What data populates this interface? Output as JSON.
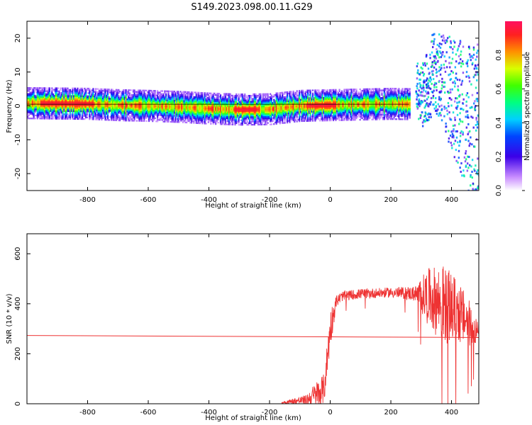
{
  "title": "S149.2023.098.00.11.G29",
  "chart_data": [
    {
      "type": "heatmap",
      "xlabel": "Height of straight line (km)",
      "ylabel": "Frequency (Hz)",
      "xlim": [
        -1000,
        490
      ],
      "ylim": [
        -25,
        25
      ],
      "x_ticks": [
        -800,
        -600,
        -400,
        -200,
        0,
        200,
        400
      ],
      "y_ticks": [
        -20,
        -10,
        0,
        10,
        20
      ],
      "colorbar": {
        "label": "Normalized spectral amplitude",
        "ticks": [
          0.0,
          0.2,
          0.4,
          0.6,
          0.8
        ],
        "range": [
          0,
          1
        ]
      },
      "reference_line_hz": 0,
      "ridge": {
        "x": [
          -1000,
          -800,
          -700,
          -600,
          -500,
          -400,
          -300,
          -200,
          -100,
          0,
          100,
          200,
          260
        ],
        "freq": [
          0.8,
          0.6,
          0.2,
          0.0,
          -0.3,
          -0.8,
          -1.1,
          -1.0,
          0.0,
          0.2,
          0.4,
          0.6,
          0.5
        ]
      },
      "grid": false
    },
    {
      "type": "line",
      "xlabel": "Height of straight line (km)",
      "ylabel": "SNR (10 * v/v)",
      "xlim": [
        -1000,
        490
      ],
      "ylim": [
        0,
        680
      ],
      "x_ticks": [
        -800,
        -600,
        -400,
        -200,
        0,
        200,
        400
      ],
      "y_ticks": [
        0,
        200,
        400,
        600
      ],
      "series_color": "#ee3333",
      "flat_segment": {
        "x": [
          -1000,
          490
        ],
        "y": [
          273,
          265
        ]
      },
      "noisy_profile": {
        "x": [
          -160,
          -80,
          -40,
          -20,
          0,
          20,
          40,
          100,
          200,
          280,
          320,
          370,
          420,
          460,
          490
        ],
        "y": [
          5,
          15,
          40,
          60,
          300,
          410,
          430,
          440,
          445,
          440,
          430,
          400,
          370,
          320,
          280
        ],
        "spread": [
          5,
          20,
          60,
          60,
          80,
          25,
          20,
          20,
          20,
          30,
          110,
          160,
          130,
          90,
          40
        ]
      },
      "grid": false
    }
  ]
}
